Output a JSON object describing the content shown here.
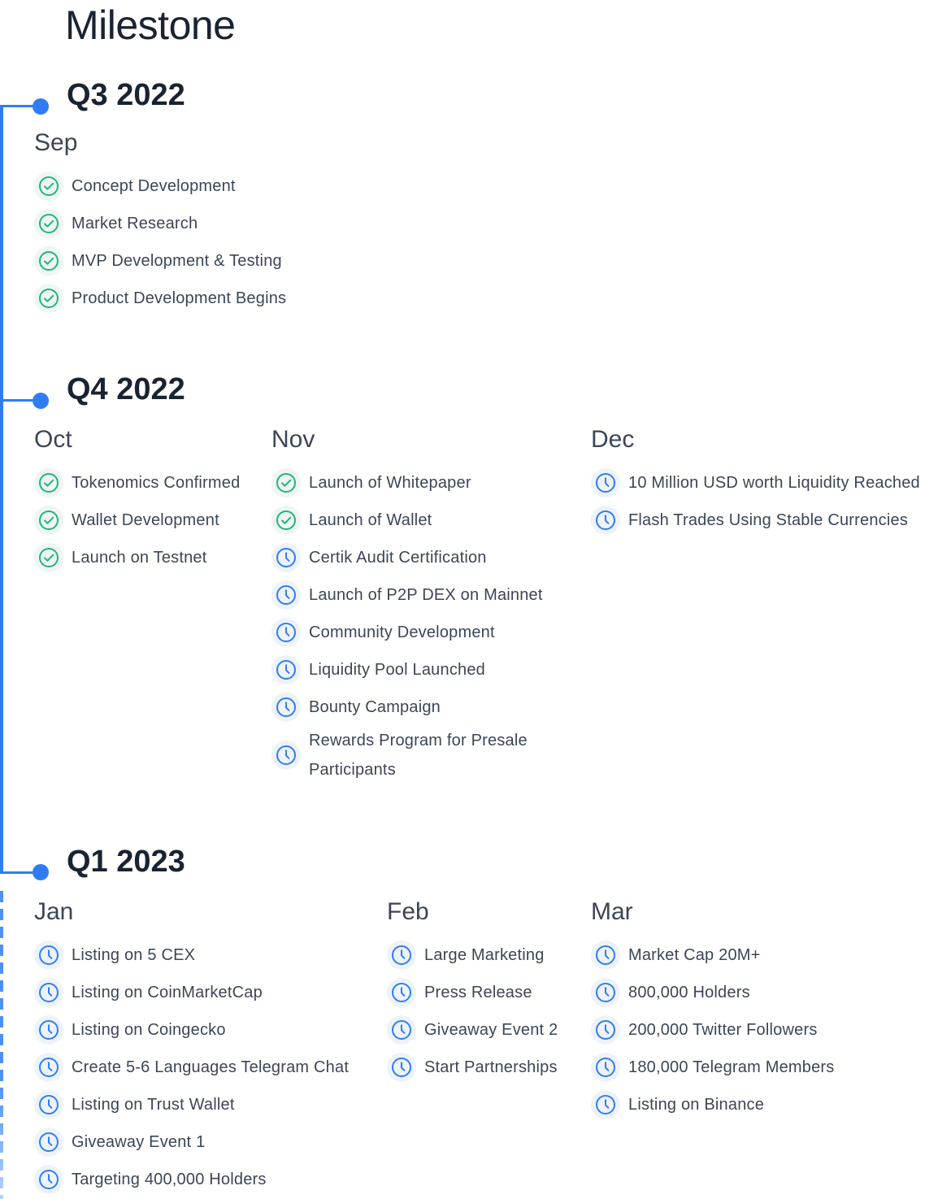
{
  "page_title": "Milestone",
  "colors": {
    "accent": "#2f7df6",
    "done": "#22b57a",
    "pending": "#2f7df6"
  },
  "icons": {
    "done": "check-circle-icon",
    "pending": "clock-icon"
  },
  "quarters": [
    {
      "label": "Q3 2022",
      "months": [
        {
          "name": "Sep",
          "items": [
            {
              "text": "Concept Development",
              "status": "done"
            },
            {
              "text": "Market Research",
              "status": "done"
            },
            {
              "text": "MVP Development & Testing",
              "status": "done"
            },
            {
              "text": "Product Development Begins",
              "status": "done"
            }
          ]
        }
      ]
    },
    {
      "label": "Q4 2022",
      "months": [
        {
          "name": "Oct",
          "items": [
            {
              "text": "Tokenomics Confirmed",
              "status": "done"
            },
            {
              "text": "Wallet Development",
              "status": "done"
            },
            {
              "text": "Launch on Testnet",
              "status": "done"
            }
          ]
        },
        {
          "name": "Nov",
          "items": [
            {
              "text": "Launch of Whitepaper",
              "status": "done"
            },
            {
              "text": "Launch of Wallet",
              "status": "done"
            },
            {
              "text": "Certik Audit Certification",
              "status": "pending"
            },
            {
              "text": "Launch of P2P DEX on Mainnet",
              "status": "pending"
            },
            {
              "text": "Community Development",
              "status": "pending"
            },
            {
              "text": "Liquidity Pool Launched",
              "status": "pending"
            },
            {
              "text": "Bounty Campaign",
              "status": "pending"
            },
            {
              "text": "Rewards Program for Presale Participants",
              "status": "pending"
            }
          ]
        },
        {
          "name": "Dec",
          "items": [
            {
              "text": "10 Million USD worth Liquidity Reached",
              "status": "pending"
            },
            {
              "text": "Flash Trades Using Stable Currencies",
              "status": "pending"
            }
          ]
        }
      ]
    },
    {
      "label": "Q1 2023",
      "months": [
        {
          "name": "Jan",
          "items": [
            {
              "text": "Listing on 5 CEX",
              "status": "pending"
            },
            {
              "text": "Listing on CoinMarketCap",
              "status": "pending"
            },
            {
              "text": "Listing on Coingecko",
              "status": "pending"
            },
            {
              "text": "Create 5-6 Languages Telegram Chat",
              "status": "pending"
            },
            {
              "text": "Listing on Trust Wallet",
              "status": "pending"
            },
            {
              "text": "Giveaway Event 1",
              "status": "pending"
            },
            {
              "text": "Targeting 400,000 Holders",
              "status": "pending"
            }
          ]
        },
        {
          "name": "Feb",
          "items": [
            {
              "text": "Large Marketing",
              "status": "pending"
            },
            {
              "text": "Press Release",
              "status": "pending"
            },
            {
              "text": "Giveaway Event 2",
              "status": "pending"
            },
            {
              "text": "Start Partnerships",
              "status": "pending"
            }
          ]
        },
        {
          "name": "Mar",
          "items": [
            {
              "text": "Market Cap 20M+",
              "status": "pending"
            },
            {
              "text": "800,000 Holders",
              "status": "pending"
            },
            {
              "text": "200,000 Twitter Followers",
              "status": "pending"
            },
            {
              "text": "180,000 Telegram Members",
              "status": "pending"
            },
            {
              "text": "Listing on Binance",
              "status": "pending"
            }
          ]
        }
      ]
    }
  ]
}
